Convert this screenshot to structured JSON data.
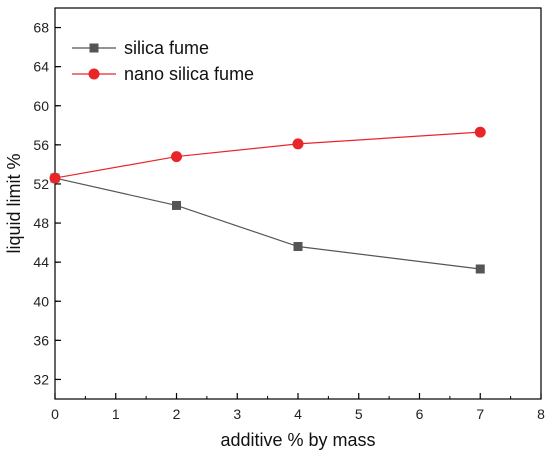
{
  "chart_data": {
    "type": "line",
    "title": "",
    "xlabel": "additive % by mass",
    "ylabel": "liquid limit %",
    "x_ticks": [
      0,
      1,
      2,
      3,
      4,
      5,
      6,
      7,
      8
    ],
    "y_ticks": [
      32,
      36,
      40,
      44,
      48,
      52,
      56,
      60,
      64,
      68
    ],
    "xlim": [
      0,
      8
    ],
    "ylim": [
      30,
      70
    ],
    "grid": false,
    "legend_position": "top-left",
    "series": [
      {
        "name": "silica fume",
        "color": "#555555",
        "marker": "square",
        "x": [
          0,
          2,
          4,
          7
        ],
        "y": [
          52.6,
          49.8,
          45.6,
          43.3
        ]
      },
      {
        "name": "nano silica fume",
        "color": "#e8262a",
        "marker": "circle",
        "x": [
          0,
          2,
          4,
          7
        ],
        "y": [
          52.6,
          54.8,
          56.1,
          57.3
        ]
      }
    ]
  }
}
